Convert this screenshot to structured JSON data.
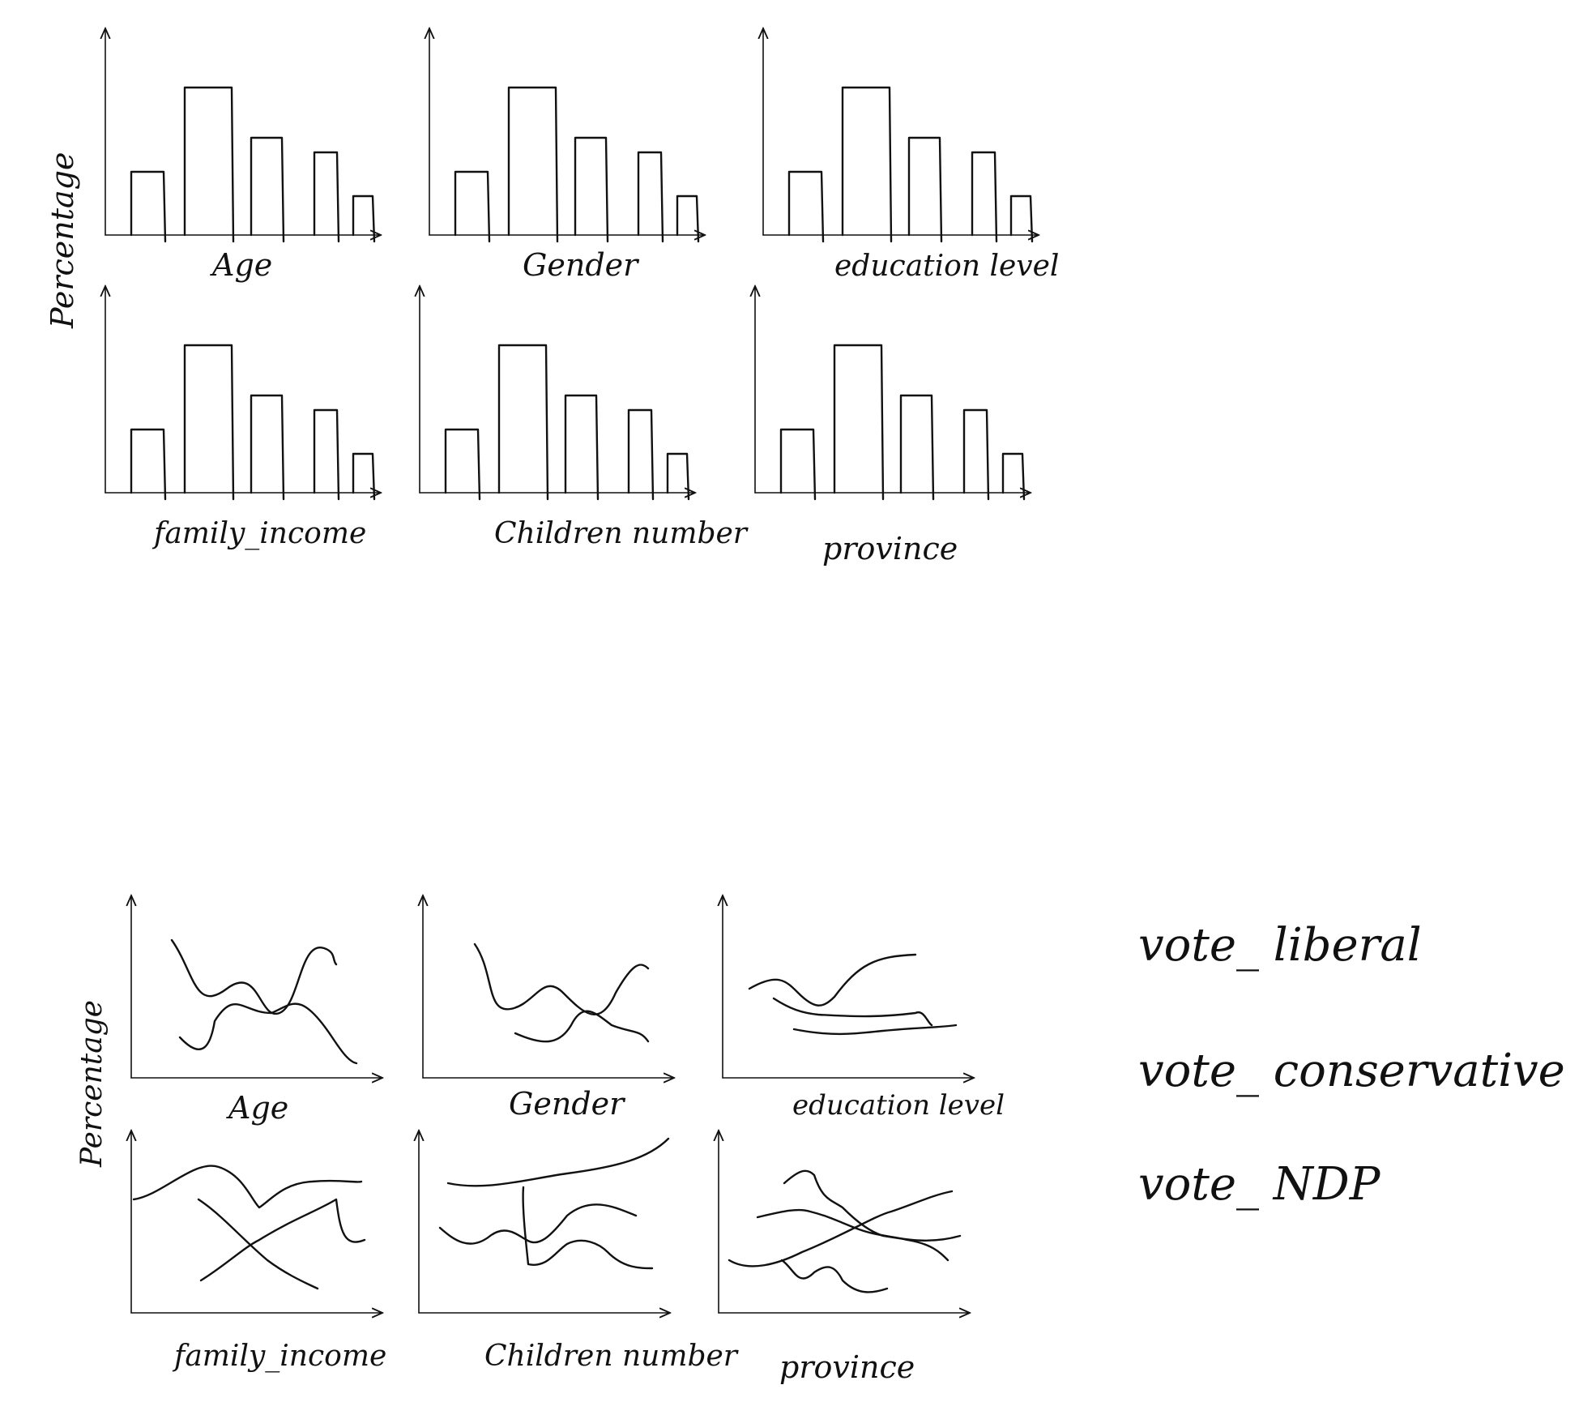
{
  "colors": {
    "ink": "#111111",
    "background": "#ffffff"
  },
  "bar_section": {
    "ylabel": "Percentage",
    "panels": [
      {
        "label": "Age",
        "type": "bar"
      },
      {
        "label": "Gender",
        "type": "bar"
      },
      {
        "label": "education level",
        "type": "bar"
      },
      {
        "label": "family_income",
        "type": "bar"
      },
      {
        "label": "Children number",
        "type": "bar"
      },
      {
        "label": "province",
        "type": "bar"
      }
    ]
  },
  "line_section": {
    "ylabel": "Percentage",
    "panels": [
      {
        "label": "Age",
        "type": "line"
      },
      {
        "label": "Gender",
        "type": "line"
      },
      {
        "label": "education level",
        "type": "line"
      },
      {
        "label": "family_income",
        "type": "line"
      },
      {
        "label": "Children number",
        "type": "line"
      },
      {
        "label": "province",
        "type": "line"
      }
    ]
  },
  "legend": {
    "items": [
      "vote_ liberal",
      "vote_ conservative",
      "vote_ NDP"
    ]
  }
}
